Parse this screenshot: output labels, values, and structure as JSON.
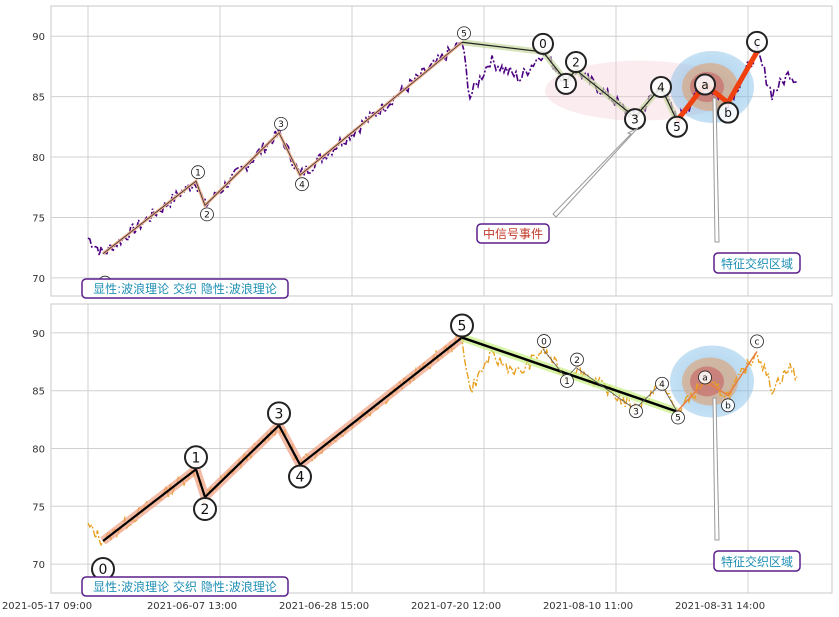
{
  "chart_data": [
    {
      "type": "line",
      "panel": "top",
      "series_color": "#4b0082",
      "ylim": [
        68.5,
        92.5
      ],
      "yticks": [
        70,
        75,
        80,
        85,
        90
      ],
      "grid": true,
      "waves_major": [
        {
          "label": "0",
          "value": 72.0
        },
        {
          "label": "1",
          "value": 78.0
        },
        {
          "label": "2",
          "value": 76.0
        },
        {
          "label": "3",
          "value": 82.0
        },
        {
          "label": "4",
          "value": 78.5
        },
        {
          "label": "5",
          "value": 89.5
        }
      ],
      "waves_minor": [
        {
          "label": "0",
          "value": 88.7
        },
        {
          "label": "1",
          "value": 86.3
        },
        {
          "label": "2",
          "value": 87.2
        },
        {
          "label": "3",
          "value": 83.3
        },
        {
          "label": "4",
          "value": 85.8
        },
        {
          "label": "5",
          "value": 83.0
        }
      ],
      "waves_abc": [
        {
          "label": "a",
          "value": 86.0
        },
        {
          "label": "b",
          "value": 84.5
        },
        {
          "label": "c",
          "value": 88.7
        }
      ],
      "annotations": {
        "signal": "中信号事件",
        "zone": "特征交织区域",
        "legend": "显性:波浪理论 交织 隐性:波浪理论"
      }
    },
    {
      "type": "line",
      "panel": "bottom",
      "series_color": "#e8a020",
      "ylim": [
        67.5,
        92.5
      ],
      "yticks": [
        70,
        75,
        80,
        85,
        90
      ],
      "grid": true,
      "xticks": [
        "2021-05-17 09:00",
        "2021-06-07 13:00",
        "2021-06-28 15:00",
        "2021-07-20 12:00",
        "2021-08-10 11:00",
        "2021-08-31 14:00"
      ],
      "waves_major": [
        {
          "label": "0",
          "value": 72.0
        },
        {
          "label": "1",
          "value": 78.2
        },
        {
          "label": "2",
          "value": 75.8
        },
        {
          "label": "3",
          "value": 82.0
        },
        {
          "label": "4",
          "value": 78.6
        },
        {
          "label": "5",
          "value": 89.6
        }
      ],
      "waves_minor": [
        {
          "label": "0",
          "value": 88.6
        },
        {
          "label": "1",
          "value": 86.1
        },
        {
          "label": "2",
          "value": 87.0
        },
        {
          "label": "3",
          "value": 83.4
        },
        {
          "label": "4",
          "value": 85.6
        },
        {
          "label": "5",
          "value": 83.2
        }
      ],
      "waves_abc": [
        {
          "label": "a",
          "value": 85.8
        },
        {
          "label": "b",
          "value": 84.6
        },
        {
          "label": "c",
          "value": 88.4
        }
      ],
      "annotations": {
        "zone": "特征交织区域",
        "legend": "显性:波浪理论 交织 隐性:波浪理论"
      }
    }
  ]
}
